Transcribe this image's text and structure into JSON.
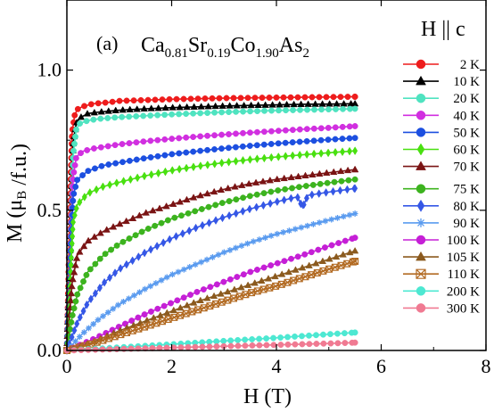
{
  "chart_data": {
    "type": "scatter",
    "panel_label": "(a)",
    "title_parts": [
      {
        "text": "Ca",
        "sub": false
      },
      {
        "text": "0.81",
        "sub": true
      },
      {
        "text": "Sr",
        "sub": false
      },
      {
        "text": "0.19",
        "sub": true
      },
      {
        "text": "Co",
        "sub": false
      },
      {
        "text": "1.90",
        "sub": true
      },
      {
        "text": "As",
        "sub": false
      },
      {
        "text": "2",
        "sub": true
      }
    ],
    "xlabel": "H (T)",
    "ylabel_parts": [
      {
        "text": "M (μ",
        "sub": false
      },
      {
        "text": "B",
        "sub": true
      },
      {
        "text": " /f.u.)",
        "sub": false
      }
    ],
    "xlim": [
      0,
      8
    ],
    "ylim": [
      0,
      1.25
    ],
    "xticks": [
      {
        "value": 0,
        "label": "0"
      },
      {
        "value": 2,
        "label": "2"
      },
      {
        "value": 4,
        "label": "4"
      },
      {
        "value": 6,
        "label": "6"
      },
      {
        "value": 8,
        "label": "8"
      }
    ],
    "yticks": [
      {
        "value": 0,
        "label": "0.0"
      },
      {
        "value": 0.5,
        "label": "0.5"
      },
      {
        "value": 1.0,
        "label": "1.0"
      }
    ],
    "legend_title": "H || c",
    "legend_position": "right",
    "series": [
      {
        "name": "2 K",
        "color": "#ee1c1c",
        "marker": "circle",
        "points": [
          [
            0,
            0
          ],
          [
            0.03,
            0.25
          ],
          [
            0.06,
            0.55
          ],
          [
            0.1,
            0.78
          ],
          [
            0.15,
            0.84
          ],
          [
            0.2,
            0.86
          ],
          [
            0.3,
            0.87
          ],
          [
            0.5,
            0.88
          ],
          [
            0.8,
            0.885
          ],
          [
            1,
            0.89
          ],
          [
            1.5,
            0.893
          ],
          [
            2,
            0.896
          ],
          [
            2.5,
            0.898
          ],
          [
            3,
            0.9
          ],
          [
            3.5,
            0.901
          ],
          [
            4,
            0.902
          ],
          [
            4.5,
            0.903
          ],
          [
            5,
            0.904
          ],
          [
            5.5,
            0.905
          ]
        ]
      },
      {
        "name": "10 K",
        "color": "#000000",
        "marker": "triangle",
        "points": [
          [
            0,
            0
          ],
          [
            0.04,
            0.22
          ],
          [
            0.08,
            0.5
          ],
          [
            0.12,
            0.74
          ],
          [
            0.18,
            0.81
          ],
          [
            0.25,
            0.83
          ],
          [
            0.4,
            0.845
          ],
          [
            0.6,
            0.85
          ],
          [
            1,
            0.857
          ],
          [
            1.5,
            0.862
          ],
          [
            2,
            0.866
          ],
          [
            2.5,
            0.869
          ],
          [
            3,
            0.872
          ],
          [
            3.5,
            0.874
          ],
          [
            4,
            0.876
          ],
          [
            4.5,
            0.878
          ],
          [
            5,
            0.879
          ],
          [
            5.5,
            0.88
          ]
        ]
      },
      {
        "name": "20 K",
        "color": "#4fe3c0",
        "marker": "circle",
        "points": [
          [
            0,
            0
          ],
          [
            0.04,
            0.2
          ],
          [
            0.08,
            0.46
          ],
          [
            0.12,
            0.7
          ],
          [
            0.18,
            0.79
          ],
          [
            0.25,
            0.81
          ],
          [
            0.4,
            0.82
          ],
          [
            0.6,
            0.826
          ],
          [
            1,
            0.832
          ],
          [
            1.5,
            0.837
          ],
          [
            2,
            0.842
          ],
          [
            2.5,
            0.846
          ],
          [
            3,
            0.85
          ],
          [
            3.5,
            0.853
          ],
          [
            4,
            0.856
          ],
          [
            4.5,
            0.858
          ],
          [
            5,
            0.86
          ],
          [
            5.5,
            0.862
          ]
        ]
      },
      {
        "name": "40 K",
        "color": "#d12fe0",
        "marker": "circle",
        "points": [
          [
            0,
            0
          ],
          [
            0.04,
            0.18
          ],
          [
            0.08,
            0.42
          ],
          [
            0.12,
            0.62
          ],
          [
            0.18,
            0.69
          ],
          [
            0.3,
            0.71
          ],
          [
            0.5,
            0.72
          ],
          [
            1,
            0.735
          ],
          [
            1.5,
            0.746
          ],
          [
            2,
            0.755
          ],
          [
            2.5,
            0.763
          ],
          [
            3,
            0.77
          ],
          [
            3.5,
            0.777
          ],
          [
            4,
            0.783
          ],
          [
            4.5,
            0.789
          ],
          [
            5,
            0.794
          ],
          [
            5.5,
            0.8
          ]
        ]
      },
      {
        "name": "50 K",
        "color": "#1c4fe0",
        "marker": "circle",
        "points": [
          [
            0,
            0
          ],
          [
            0.04,
            0.16
          ],
          [
            0.08,
            0.38
          ],
          [
            0.12,
            0.55
          ],
          [
            0.2,
            0.61
          ],
          [
            0.4,
            0.64
          ],
          [
            0.7,
            0.66
          ],
          [
            1,
            0.67
          ],
          [
            1.5,
            0.686
          ],
          [
            2,
            0.7
          ],
          [
            2.5,
            0.711
          ],
          [
            3,
            0.721
          ],
          [
            3.5,
            0.73
          ],
          [
            4,
            0.738
          ],
          [
            4.5,
            0.745
          ],
          [
            5,
            0.752
          ],
          [
            5.5,
            0.758
          ]
        ]
      },
      {
        "name": "60 K",
        "color": "#49e010",
        "marker": "diamond",
        "points": [
          [
            0,
            0
          ],
          [
            0.04,
            0.14
          ],
          [
            0.08,
            0.32
          ],
          [
            0.12,
            0.46
          ],
          [
            0.2,
            0.52
          ],
          [
            0.4,
            0.56
          ],
          [
            0.7,
            0.585
          ],
          [
            1,
            0.6
          ],
          [
            1.5,
            0.623
          ],
          [
            2,
            0.642
          ],
          [
            2.5,
            0.657
          ],
          [
            3,
            0.67
          ],
          [
            3.5,
            0.681
          ],
          [
            4,
            0.69
          ],
          [
            4.5,
            0.698
          ],
          [
            5,
            0.705
          ],
          [
            5.5,
            0.712
          ]
        ]
      },
      {
        "name": "70 K",
        "color": "#7a1414",
        "marker": "triangle",
        "points": [
          [
            0,
            0
          ],
          [
            0.05,
            0.12
          ],
          [
            0.1,
            0.24
          ],
          [
            0.2,
            0.34
          ],
          [
            0.4,
            0.39
          ],
          [
            0.7,
            0.425
          ],
          [
            1,
            0.45
          ],
          [
            1.5,
            0.49
          ],
          [
            2,
            0.52
          ],
          [
            2.5,
            0.55
          ],
          [
            3,
            0.575
          ],
          [
            3.5,
            0.595
          ],
          [
            4,
            0.61
          ],
          [
            4.5,
            0.622
          ],
          [
            5,
            0.634
          ],
          [
            5.5,
            0.645
          ]
        ]
      },
      {
        "name": "75 K",
        "color": "#3cb31e",
        "marker": "circle",
        "points": [
          [
            0,
            0
          ],
          [
            0.1,
            0.12
          ],
          [
            0.2,
            0.2
          ],
          [
            0.4,
            0.28
          ],
          [
            0.7,
            0.34
          ],
          [
            1,
            0.38
          ],
          [
            1.5,
            0.43
          ],
          [
            2,
            0.47
          ],
          [
            2.5,
            0.5
          ],
          [
            3,
            0.528
          ],
          [
            3.5,
            0.551
          ],
          [
            4,
            0.57
          ],
          [
            4.5,
            0.585
          ],
          [
            5,
            0.598
          ],
          [
            5.5,
            0.61
          ]
        ]
      },
      {
        "name": "80 K",
        "color": "#3557e6",
        "marker": "diamond",
        "points": [
          [
            0,
            0
          ],
          [
            0.2,
            0.1
          ],
          [
            0.4,
            0.17
          ],
          [
            0.7,
            0.24
          ],
          [
            1,
            0.29
          ],
          [
            1.5,
            0.35
          ],
          [
            2,
            0.4
          ],
          [
            2.5,
            0.44
          ],
          [
            3,
            0.475
          ],
          [
            3.5,
            0.505
          ],
          [
            4,
            0.53
          ],
          [
            4.4,
            0.548
          ],
          [
            4.5,
            0.51
          ],
          [
            4.6,
            0.553
          ],
          [
            5,
            0.565
          ],
          [
            5.5,
            0.578
          ]
        ]
      },
      {
        "name": "90 K",
        "color": "#5a9bef",
        "marker": "asterisk",
        "points": [
          [
            0,
            0
          ],
          [
            0.3,
            0.06
          ],
          [
            0.6,
            0.11
          ],
          [
            1,
            0.165
          ],
          [
            1.5,
            0.22
          ],
          [
            2,
            0.27
          ],
          [
            2.5,
            0.31
          ],
          [
            3,
            0.35
          ],
          [
            3.5,
            0.385
          ],
          [
            4,
            0.415
          ],
          [
            4.5,
            0.44
          ],
          [
            5,
            0.465
          ],
          [
            5.5,
            0.488
          ]
        ]
      },
      {
        "name": "100 K",
        "color": "#c51fd6",
        "marker": "circle",
        "points": [
          [
            0,
            0
          ],
          [
            0.5,
            0.04
          ],
          [
            1,
            0.085
          ],
          [
            1.5,
            0.13
          ],
          [
            2,
            0.17
          ],
          [
            2.5,
            0.21
          ],
          [
            3,
            0.245
          ],
          [
            3.5,
            0.28
          ],
          [
            4,
            0.31
          ],
          [
            4.5,
            0.34
          ],
          [
            5,
            0.372
          ],
          [
            5.5,
            0.402
          ]
        ]
      },
      {
        "name": "105 K",
        "color": "#8b5a1e",
        "marker": "triangle",
        "points": [
          [
            0,
            0
          ],
          [
            0.5,
            0.03
          ],
          [
            1,
            0.07
          ],
          [
            1.5,
            0.105
          ],
          [
            2,
            0.14
          ],
          [
            2.5,
            0.175
          ],
          [
            3,
            0.205
          ],
          [
            3.5,
            0.235
          ],
          [
            4,
            0.265
          ],
          [
            4.5,
            0.295
          ],
          [
            5,
            0.325
          ],
          [
            5.5,
            0.355
          ]
        ]
      },
      {
        "name": "110 K",
        "color": "#b26a22",
        "marker": "boxcross",
        "points": [
          [
            0,
            0
          ],
          [
            0.5,
            0.025
          ],
          [
            1,
            0.055
          ],
          [
            1.5,
            0.085
          ],
          [
            2,
            0.115
          ],
          [
            2.5,
            0.145
          ],
          [
            3,
            0.175
          ],
          [
            3.5,
            0.205
          ],
          [
            4,
            0.23
          ],
          [
            4.5,
            0.26
          ],
          [
            5,
            0.29
          ],
          [
            5.5,
            0.318
          ]
        ]
      },
      {
        "name": "200 K",
        "color": "#4de8d2",
        "marker": "circle",
        "points": [
          [
            0,
            0
          ],
          [
            1,
            0.011
          ],
          [
            2,
            0.022
          ],
          [
            3,
            0.034
          ],
          [
            4,
            0.045
          ],
          [
            5,
            0.058
          ],
          [
            5.5,
            0.064
          ]
        ]
      },
      {
        "name": "300 K",
        "color": "#f07a92",
        "marker": "circle",
        "points": [
          [
            0,
            0
          ],
          [
            1,
            0.005
          ],
          [
            2,
            0.01
          ],
          [
            3,
            0.015
          ],
          [
            4,
            0.02
          ],
          [
            5,
            0.025
          ],
          [
            5.5,
            0.028
          ]
        ]
      }
    ]
  }
}
